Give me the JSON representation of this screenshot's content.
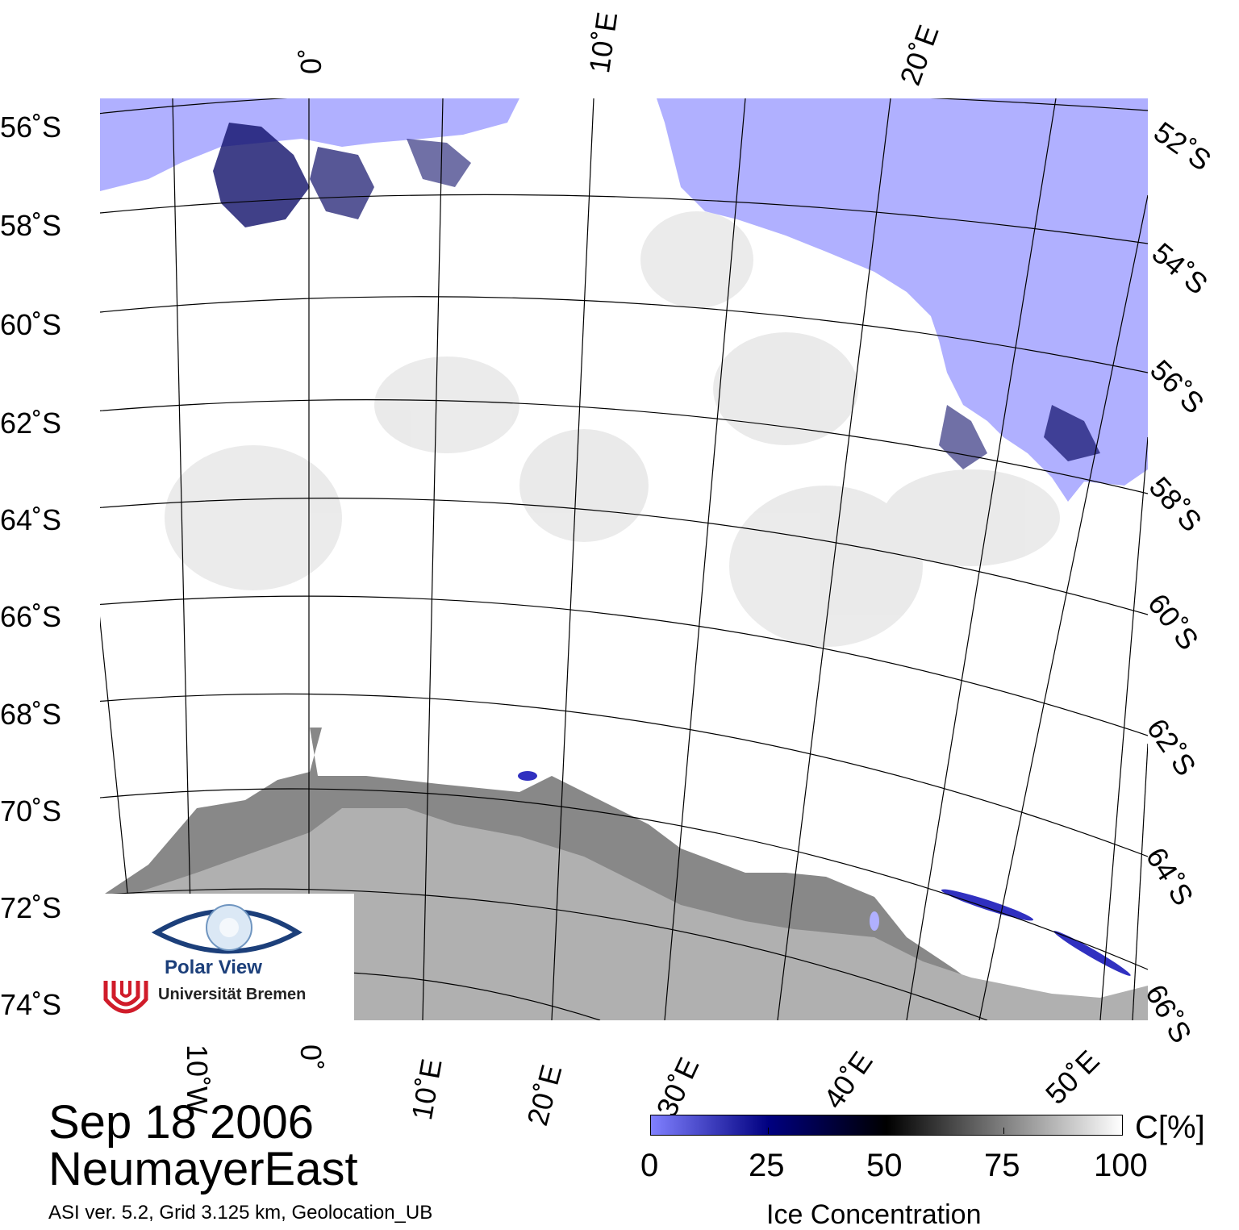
{
  "map": {
    "region": "NeumayerEast",
    "date": "Sep 18 2006",
    "meta": "ASI ver. 5.2,  Grid 3.125 km, Geolocation_UB",
    "lat_labels_left": [
      "56˚S",
      "58˚S",
      "60˚S",
      "62˚S",
      "64˚S",
      "66˚S",
      "68˚S",
      "70˚S",
      "72˚S",
      "74˚S"
    ],
    "lat_labels_right": [
      "52˚S",
      "54˚S",
      "56˚S",
      "58˚S",
      "60˚S",
      "62˚S",
      "64˚S",
      "66˚S"
    ],
    "lon_labels_top": [
      "0˚",
      "10˚E",
      "20˚E"
    ],
    "lon_labels_bottom": [
      "10˚W",
      "0˚",
      "10˚E",
      "20˚E",
      "30˚E",
      "40˚E",
      "50˚E"
    ]
  },
  "logo": {
    "title": "Polar View",
    "institution": "Universität Bremen"
  },
  "legend": {
    "unit": "C[%]",
    "label": "Ice Concentration",
    "ticks": [
      "0",
      "25",
      "50",
      "75",
      "100"
    ],
    "colors": [
      "#8080ff",
      "#000080",
      "#000000",
      "#808080",
      "#ffffff"
    ]
  },
  "colors": {
    "open_water": "#b0b0ff",
    "land": "#b0b0b0",
    "ice_shelf": "#888888"
  }
}
